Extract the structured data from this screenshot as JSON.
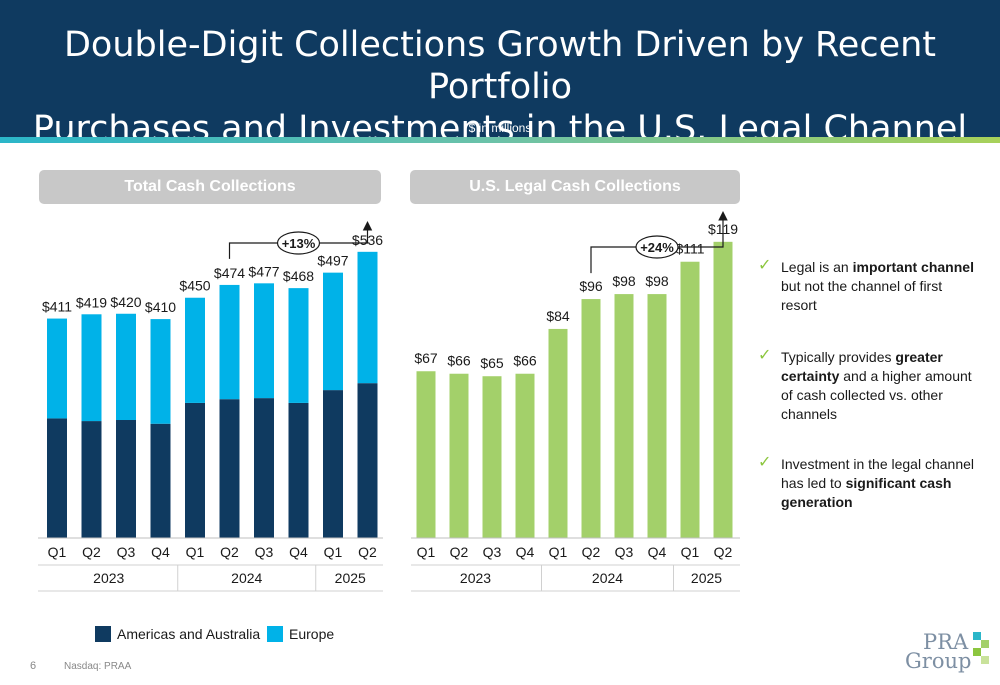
{
  "header": {
    "title_line1": "Double-Digit Collections Growth Driven by Recent Portfolio",
    "title_line2": "Purchases and Investments in the U.S. Legal Channel",
    "subtitle": "$ in millions"
  },
  "colors": {
    "navy": "#0f3a60",
    "americas": "#0f3a60",
    "europe": "#00b2e8",
    "legal": "#a3d06a",
    "panel_title_bg": "#c8c8c8",
    "check": "#8cc63f"
  },
  "chart_data": [
    {
      "type": "bar",
      "stacked": true,
      "title": "Total Cash Collections",
      "categories": [
        "Q1",
        "Q2",
        "Q3",
        "Q4",
        "Q1",
        "Q2",
        "Q3",
        "Q4",
        "Q1",
        "Q2"
      ],
      "years": [
        "2023",
        "2024",
        "2025"
      ],
      "year_quarter_counts": [
        4,
        4,
        2
      ],
      "series": [
        {
          "name": "Americas and Australia",
          "values": [
            224,
            219,
            221,
            214,
            253,
            260,
            262,
            253,
            277,
            290
          ]
        },
        {
          "name": "Europe",
          "values": [
            187,
            200,
            199,
            196,
            197,
            214,
            215,
            215,
            220,
            246
          ]
        }
      ],
      "total_labels": [
        "$411",
        "$419",
        "$420",
        "$410",
        "$450",
        "$474",
        "$477",
        "$468",
        "$497",
        "$536"
      ],
      "annotation": {
        "text": "+13%",
        "from_index": 5,
        "to_index": 9
      },
      "ylim": [
        0,
        575
      ],
      "legend_position": "bottom"
    },
    {
      "type": "bar",
      "title": "U.S. Legal Cash Collections",
      "categories": [
        "Q1",
        "Q2",
        "Q3",
        "Q4",
        "Q1",
        "Q2",
        "Q3",
        "Q4",
        "Q1",
        "Q2"
      ],
      "years": [
        "2023",
        "2024",
        "2025"
      ],
      "year_quarter_counts": [
        4,
        4,
        2
      ],
      "values": [
        67,
        66,
        65,
        66,
        84,
        96,
        98,
        98,
        111,
        119
      ],
      "value_labels": [
        "$67",
        "$66",
        "$65",
        "$66",
        "$84",
        "$96",
        "$98",
        "$98",
        "$111",
        "$119"
      ],
      "annotation": {
        "text": "+24%",
        "from_index": 5,
        "to_index": 9
      },
      "ylim": [
        0,
        135
      ]
    }
  ],
  "bullets": [
    {
      "parts": [
        {
          "text": "Legal is an ",
          "bold": false
        },
        {
          "text": "important channel",
          "bold": true
        },
        {
          "text": " but not the channel of first resort",
          "bold": false
        }
      ]
    },
    {
      "parts": [
        {
          "text": "Typically provides ",
          "bold": false
        },
        {
          "text": "greater certainty",
          "bold": true
        },
        {
          "text": " and a higher amount of cash collected vs. other channels",
          "bold": false
        }
      ]
    },
    {
      "parts": [
        {
          "text": "Investment in the legal channel has led to ",
          "bold": false
        },
        {
          "text": "significant cash generation",
          "bold": true
        }
      ]
    }
  ],
  "legend": {
    "americas": "Americas and Australia",
    "europe": "Europe"
  },
  "footer": {
    "page_number": "6",
    "ticker": "Nasdaq: PRAA"
  },
  "logo": {
    "line1": "PRA",
    "line2": "Group"
  }
}
